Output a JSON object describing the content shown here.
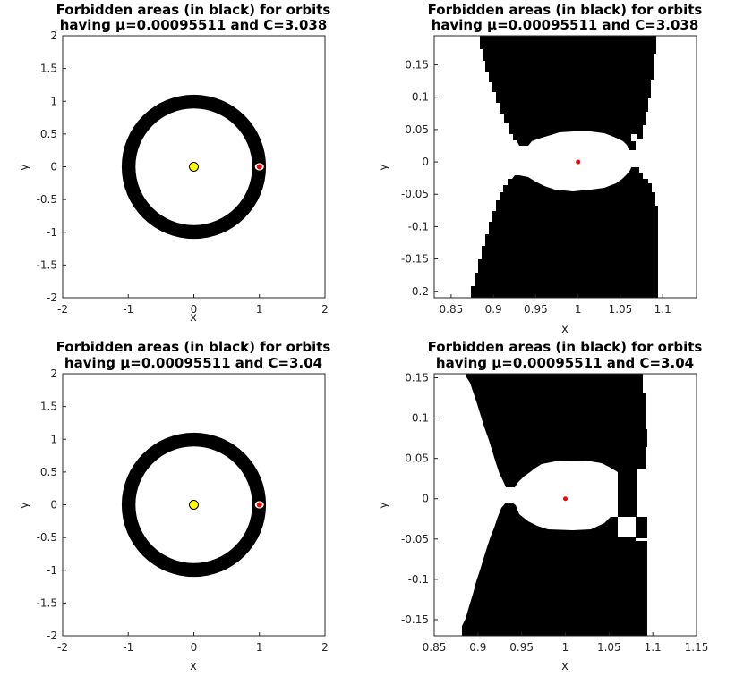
{
  "chart_data": [
    {
      "type": "area",
      "title_line1": "Forbidden areas (in black) for orbits",
      "title_line2": "having μ=0.00095511 and C=3.038",
      "xlabel": "x",
      "ylabel": "y",
      "xlim": [
        -2,
        2
      ],
      "ylim": [
        -2,
        2
      ],
      "xticks": [
        "-2",
        "-1",
        "0",
        "1",
        "2"
      ],
      "yticks": [
        "-2",
        "-1.5",
        "-1",
        "-0.5",
        "0",
        "0.5",
        "1",
        "1.5",
        "2"
      ],
      "forbidden_ring": {
        "inner_radius": 0.89,
        "outer_radius": 1.1
      },
      "sun": {
        "x": 0,
        "y": 0,
        "color": "#ffff00"
      },
      "planet": {
        "x": 1,
        "y": 0,
        "color": "#ff0000"
      }
    },
    {
      "type": "area",
      "title_line1": "Forbidden areas (in black) for orbits",
      "title_line2": "having μ=0.00095511 and C=3.038",
      "xlabel": "x",
      "ylabel": "y",
      "xlim": [
        0.83,
        1.14
      ],
      "ylim": [
        -0.21,
        0.195
      ],
      "xticks": [
        "0.85",
        "0.9",
        "0.95",
        "1",
        "1.05",
        "1.1"
      ],
      "yticks": [
        "-0.2",
        "-0.15",
        "-0.1",
        "-0.05",
        "0",
        "0.05",
        "0.1",
        "0.15"
      ],
      "planet": {
        "x": 1,
        "y": 0,
        "color": "#ff0000"
      }
    },
    {
      "type": "area",
      "title_line1": "Forbidden areas (in black) for orbits",
      "title_line2": "having μ=0.00095511 and C=3.04",
      "xlabel": "x",
      "ylabel": "y",
      "xlim": [
        -2,
        2
      ],
      "ylim": [
        -2,
        2
      ],
      "xticks": [
        "-2",
        "-1",
        "0",
        "1",
        "2"
      ],
      "yticks": [
        "-2",
        "-1.5",
        "-1",
        "-0.5",
        "0",
        "0.5",
        "1",
        "1.5",
        "2"
      ],
      "forbidden_ring": {
        "inner_radius": 0.89,
        "outer_radius": 1.1
      },
      "sun": {
        "x": 0,
        "y": 0,
        "color": "#ffff00"
      },
      "planet": {
        "x": 1,
        "y": 0,
        "color": "#ff0000"
      }
    },
    {
      "type": "area",
      "title_line1": "Forbidden areas (in black) for orbits",
      "title_line2": "having μ=0.00095511 and C=3.04",
      "xlabel": "x",
      "ylabel": "y",
      "xlim": [
        0.85,
        1.15
      ],
      "ylim": [
        -0.17,
        0.155
      ],
      "xticks": [
        "0.85",
        "0.9",
        "0.95",
        "1",
        "1.05",
        "1.1",
        "1.15"
      ],
      "yticks": [
        "-0.15",
        "-0.1",
        "-0.05",
        "0",
        "0.05",
        "0.1",
        "0.15"
      ],
      "planet": {
        "x": 1,
        "y": 0,
        "color": "#ff0000"
      }
    }
  ]
}
